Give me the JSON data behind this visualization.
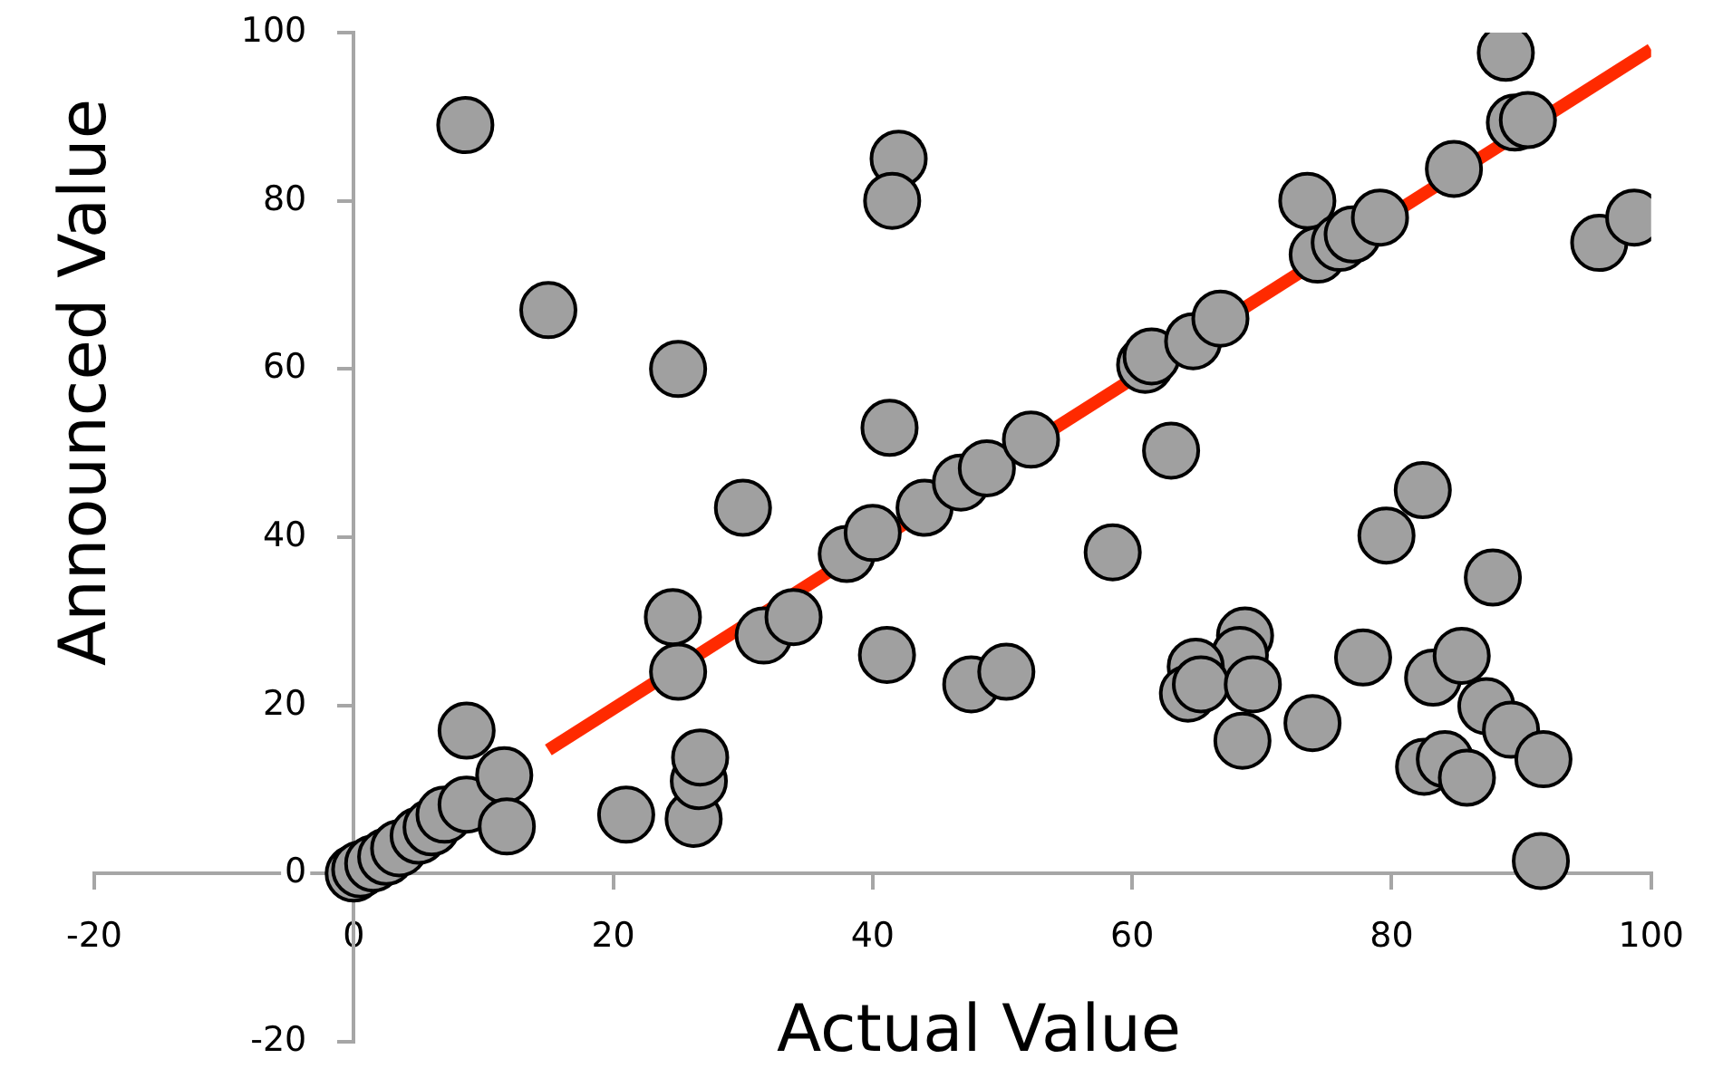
{
  "chart_data": {
    "type": "scatter",
    "xlabel": "Actual Value",
    "ylabel": "Announced Value",
    "xlim": [
      -20,
      100
    ],
    "ylim": [
      -20,
      100
    ],
    "xticks": [
      -20,
      0,
      20,
      40,
      60,
      80,
      100
    ],
    "yticks": [
      -20,
      0,
      20,
      40,
      60,
      80,
      100
    ],
    "legend": false,
    "marker": "circle",
    "series": [
      {
        "color": "#a0a0a0",
        "x": [
          0,
          0.5,
          1.5,
          2.5,
          3.5,
          5,
          6,
          7,
          8.7,
          8.7,
          11.6,
          11.8,
          8.6,
          15,
          25,
          30,
          42,
          41.5,
          41.3,
          41.1,
          24.6,
          25,
          31.6,
          33.9,
          21,
          26.2,
          26.6,
          26.7,
          38,
          40,
          44,
          46.8,
          48.8,
          52.2,
          47.6,
          50.3,
          58.5,
          63,
          61,
          61.5,
          64.7,
          66.8,
          73.5,
          74.3,
          76,
          77,
          79.1,
          84.8,
          89.5,
          90.5,
          88.8,
          96,
          98.7,
          82.4,
          79.6,
          87.8,
          68.7,
          68.3,
          64.9,
          64.3,
          65.3,
          69.3,
          68.5,
          73.9,
          77.8,
          83.2,
          85.4,
          87.3,
          89.2,
          91.7,
          82.5,
          84.1,
          85.8,
          91.5
        ],
        "values": [
          0,
          0.5,
          1.2,
          2,
          3,
          4.5,
          5.5,
          7,
          8.2,
          17,
          11.7,
          5.6,
          89,
          67,
          60,
          43.5,
          85,
          80,
          53,
          26,
          30.5,
          24,
          28.3,
          30.5,
          7,
          6.5,
          11,
          13.8,
          38,
          40.5,
          43.5,
          46.5,
          48.2,
          51.6,
          22.5,
          24,
          38.2,
          50.3,
          60.5,
          61.5,
          63.3,
          66,
          80,
          73.6,
          75,
          76,
          78,
          83.8,
          89.3,
          89.6,
          97.6,
          75,
          78,
          45.6,
          40.2,
          35.2,
          28.3,
          26,
          24.6,
          21.4,
          22.5,
          22.5,
          15.8,
          17.9,
          25.7,
          23.3,
          25.9,
          19.9,
          17.1,
          13.6,
          12.7,
          13.6,
          11.4,
          1.5
        ]
      },
      {
        "type": "line",
        "marker": "none",
        "color": "#ff2a00",
        "x": [
          15,
          100
        ],
        "values": [
          14.7,
          98
        ]
      }
    ]
  }
}
